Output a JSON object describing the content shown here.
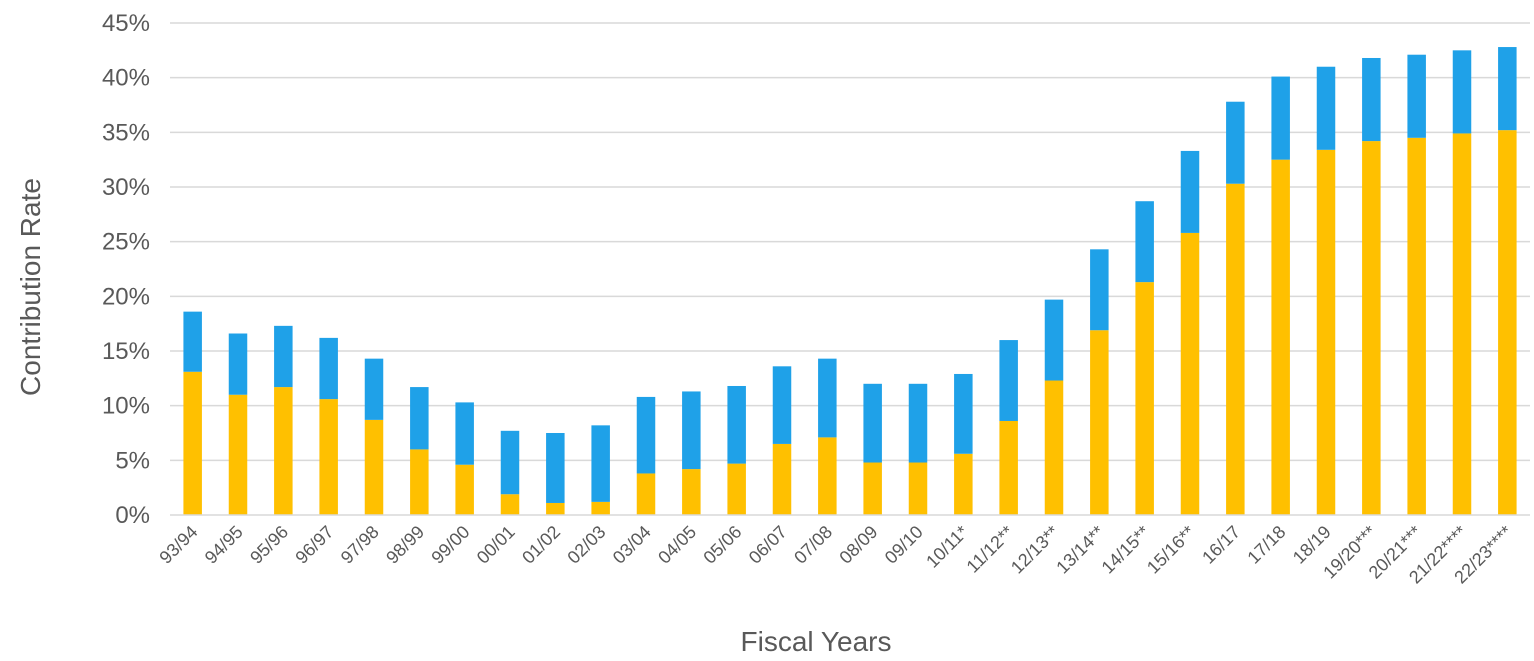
{
  "chart_data": {
    "type": "bar",
    "stacked": true,
    "title": "",
    "xlabel": "Fiscal Years",
    "ylabel": "Contribution Rate",
    "ylim": [
      0,
      45
    ],
    "yticks": [
      0,
      5,
      10,
      15,
      20,
      25,
      30,
      35,
      40,
      45
    ],
    "ytick_labels": [
      "0%",
      "5%",
      "10%",
      "15%",
      "20%",
      "25%",
      "30%",
      "35%",
      "40%",
      "45%"
    ],
    "grid": true,
    "legend": "none",
    "categories": [
      "93/94",
      "94/95",
      "95/96",
      "96/97",
      "97/98",
      "98/99",
      "99/00",
      "00/01",
      "01/02",
      "02/03",
      "03/04",
      "04/05",
      "05/06",
      "06/07",
      "07/08",
      "08/09",
      "09/10",
      "10/11*",
      "11/12**",
      "12/13**",
      "13/14**",
      "14/15**",
      "15/16**",
      "16/17",
      "17/18",
      "18/19",
      "19/20***",
      "20/21***",
      "21/22****",
      "22/23****"
    ],
    "series": [
      {
        "color": "#FFC000",
        "values": [
          13.1,
          11.0,
          11.7,
          10.6,
          8.7,
          6.0,
          4.6,
          1.9,
          1.1,
          1.2,
          3.8,
          4.2,
          4.7,
          6.5,
          7.1,
          4.8,
          4.8,
          5.6,
          8.6,
          12.3,
          16.9,
          21.3,
          25.8,
          30.3,
          32.5,
          33.4,
          34.2,
          34.5,
          34.9,
          35.2
        ]
      },
      {
        "color": "#1FA1E8",
        "values": [
          5.5,
          5.6,
          5.6,
          5.6,
          5.6,
          5.7,
          5.7,
          5.8,
          6.4,
          7.0,
          7.0,
          7.1,
          7.1,
          7.1,
          7.2,
          7.2,
          7.2,
          7.3,
          7.4,
          7.4,
          7.4,
          7.4,
          7.5,
          7.5,
          7.6,
          7.6,
          7.6,
          7.6,
          7.6,
          7.6
        ]
      }
    ]
  }
}
